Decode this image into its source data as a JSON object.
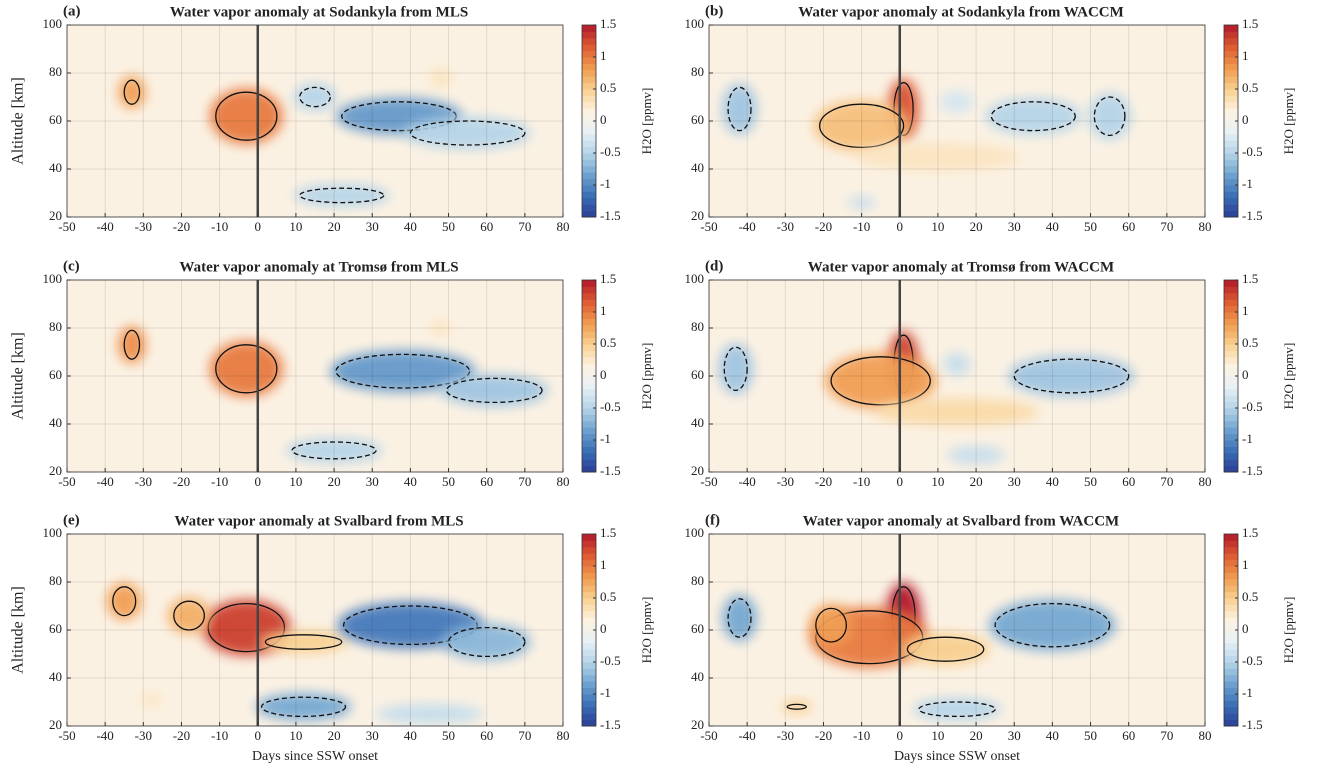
{
  "chart_data": [
    {
      "type": "contour",
      "panel_label": "(a)",
      "title": "Water vapor anomaly at Sodankyla from MLS",
      "ylabel": "Altitude [km]",
      "colorbar_label": "H2O [ppmv]",
      "xlim": [
        -50,
        80
      ],
      "xticks": [
        -50,
        -40,
        -30,
        -20,
        -10,
        0,
        10,
        20,
        30,
        40,
        50,
        60,
        70,
        80
      ],
      "ylim": [
        20,
        100
      ],
      "yticks": [
        20,
        40,
        60,
        80,
        100
      ],
      "clim": [
        -1.5,
        1.5
      ],
      "cticks": [
        -1.5,
        -1,
        -0.5,
        0,
        0.5,
        1,
        1.5
      ],
      "vline": 0,
      "grid": true,
      "colormap": [
        "#2a3d96",
        "#3b6fb6",
        "#6fa3cf",
        "#b5d4e8",
        "#e8f1f5",
        "#fdf2e0",
        "#f8cf8f",
        "#f09a4e",
        "#dd5a32",
        "#b2182b"
      ],
      "features": [
        {
          "day": -33,
          "altitude": 72,
          "day_span": 4,
          "alt_span": 10,
          "value": 0.8
        },
        {
          "day": -3,
          "altitude": 62,
          "day_span": 16,
          "alt_span": 20,
          "value": 1.0
        },
        {
          "day": 48,
          "altitude": 78,
          "day_span": 3,
          "alt_span": 5,
          "value": 0.3
        },
        {
          "day": 37,
          "altitude": 62,
          "day_span": 30,
          "alt_span": 12,
          "value": -0.9
        },
        {
          "day": 55,
          "altitude": 55,
          "day_span": 30,
          "alt_span": 10,
          "value": -0.5
        },
        {
          "day": 15,
          "altitude": 70,
          "day_span": 8,
          "alt_span": 8,
          "value": -0.5
        },
        {
          "day": 22,
          "altitude": 29,
          "day_span": 22,
          "alt_span": 6,
          "value": -0.5
        }
      ]
    },
    {
      "type": "contour",
      "panel_label": "(b)",
      "title": "Water vapor anomaly at Sodankyla from WACCM",
      "colorbar_label": "H2O [ppmv]",
      "xlim": [
        -50,
        80
      ],
      "xticks": [
        -50,
        -40,
        -30,
        -20,
        -10,
        0,
        10,
        20,
        30,
        40,
        50,
        60,
        70,
        80
      ],
      "ylim": [
        20,
        100
      ],
      "yticks": [
        20,
        40,
        60,
        80,
        100
      ],
      "clim": [
        -1.5,
        1.5
      ],
      "cticks": [
        -1.5,
        -1,
        -0.5,
        0,
        0.5,
        1,
        1.5
      ],
      "vline": 0,
      "grid": true,
      "colormap": [
        "#2a3d96",
        "#3b6fb6",
        "#6fa3cf",
        "#b5d4e8",
        "#e8f1f5",
        "#fdf2e0",
        "#f8cf8f",
        "#f09a4e",
        "#dd5a32",
        "#b2182b"
      ],
      "features": [
        {
          "day": 1,
          "altitude": 65,
          "day_span": 5,
          "alt_span": 22,
          "value": 1.2
        },
        {
          "day": -10,
          "altitude": 58,
          "day_span": 22,
          "alt_span": 18,
          "value": 0.6
        },
        {
          "day": 10,
          "altitude": 45,
          "day_span": 40,
          "alt_span": 8,
          "value": 0.3
        },
        {
          "day": -42,
          "altitude": 65,
          "day_span": 6,
          "alt_span": 18,
          "value": -0.6
        },
        {
          "day": 35,
          "altitude": 62,
          "day_span": 22,
          "alt_span": 12,
          "value": -0.5
        },
        {
          "day": 55,
          "altitude": 62,
          "day_span": 8,
          "alt_span": 16,
          "value": -0.5
        },
        {
          "day": 15,
          "altitude": 68,
          "day_span": 6,
          "alt_span": 6,
          "value": -0.3
        },
        {
          "day": -10,
          "altitude": 26,
          "day_span": 4,
          "alt_span": 2,
          "value": -0.4
        }
      ]
    },
    {
      "type": "contour",
      "panel_label": "(c)",
      "title": "Water vapor anomaly at Tromsø from MLS",
      "ylabel": "Altitude [km]",
      "colorbar_label": "H2O [ppmv]",
      "xlim": [
        -50,
        80
      ],
      "xticks": [
        -50,
        -40,
        -30,
        -20,
        -10,
        0,
        10,
        20,
        30,
        40,
        50,
        60,
        70,
        80
      ],
      "ylim": [
        20,
        100
      ],
      "yticks": [
        20,
        40,
        60,
        80,
        100
      ],
      "clim": [
        -1.5,
        1.5
      ],
      "cticks": [
        -1.5,
        -1,
        -0.5,
        0,
        0.5,
        1,
        1.5
      ],
      "vline": 0,
      "grid": true,
      "colormap": [
        "#2a3d96",
        "#3b6fb6",
        "#6fa3cf",
        "#b5d4e8",
        "#e8f1f5",
        "#fdf2e0",
        "#f8cf8f",
        "#f09a4e",
        "#dd5a32",
        "#b2182b"
      ],
      "features": [
        {
          "day": -33,
          "altitude": 73,
          "day_span": 4,
          "alt_span": 12,
          "value": 0.9
        },
        {
          "day": -3,
          "altitude": 63,
          "day_span": 16,
          "alt_span": 20,
          "value": 1.0
        },
        {
          "day": 48,
          "altitude": 80,
          "day_span": 2,
          "alt_span": 3,
          "value": 0.3
        },
        {
          "day": 38,
          "altitude": 62,
          "day_span": 35,
          "alt_span": 14,
          "value": -0.9
        },
        {
          "day": 62,
          "altitude": 54,
          "day_span": 25,
          "alt_span": 10,
          "value": -0.6
        },
        {
          "day": 20,
          "altitude": 29,
          "day_span": 22,
          "alt_span": 7,
          "value": -0.5
        }
      ]
    },
    {
      "type": "contour",
      "panel_label": "(d)",
      "title": "Water vapor anomaly at Tromsø from WACCM",
      "colorbar_label": "H2O [ppmv]",
      "xlim": [
        -50,
        80
      ],
      "xticks": [
        -50,
        -40,
        -30,
        -20,
        -10,
        0,
        10,
        20,
        30,
        40,
        50,
        60,
        70,
        80
      ],
      "ylim": [
        20,
        100
      ],
      "yticks": [
        20,
        40,
        60,
        80,
        100
      ],
      "clim": [
        -1.5,
        1.5
      ],
      "cticks": [
        -1.5,
        -1,
        -0.5,
        0,
        0.5,
        1,
        1.5
      ],
      "vline": 0,
      "grid": true,
      "colormap": [
        "#2a3d96",
        "#3b6fb6",
        "#6fa3cf",
        "#b5d4e8",
        "#e8f1f5",
        "#fdf2e0",
        "#f8cf8f",
        "#f09a4e",
        "#dd5a32",
        "#b2182b"
      ],
      "features": [
        {
          "day": 1,
          "altitude": 65,
          "day_span": 5,
          "alt_span": 24,
          "value": 1.3
        },
        {
          "day": -5,
          "altitude": 58,
          "day_span": 26,
          "alt_span": 20,
          "value": 0.8
        },
        {
          "day": 15,
          "altitude": 45,
          "day_span": 40,
          "alt_span": 8,
          "value": 0.4
        },
        {
          "day": -43,
          "altitude": 63,
          "day_span": 6,
          "alt_span": 18,
          "value": -0.6
        },
        {
          "day": 45,
          "altitude": 60,
          "day_span": 30,
          "alt_span": 14,
          "value": -0.6
        },
        {
          "day": 15,
          "altitude": 65,
          "day_span": 4,
          "alt_span": 6,
          "value": -0.4
        },
        {
          "day": 20,
          "altitude": 27,
          "day_span": 12,
          "alt_span": 4,
          "value": -0.4
        }
      ]
    },
    {
      "type": "contour",
      "panel_label": "(e)",
      "title": "Water vapor anomaly at Svalbard from MLS",
      "ylabel": "Altitude [km]",
      "xlabel": "Days since SSW onset",
      "colorbar_label": "H2O [ppmv]",
      "xlim": [
        -50,
        80
      ],
      "xticks": [
        -50,
        -40,
        -30,
        -20,
        -10,
        0,
        10,
        20,
        30,
        40,
        50,
        60,
        70,
        80
      ],
      "ylim": [
        20,
        100
      ],
      "yticks": [
        20,
        40,
        60,
        80,
        100
      ],
      "clim": [
        -1.5,
        1.5
      ],
      "cticks": [
        -1.5,
        -1,
        -0.5,
        0,
        0.5,
        1,
        1.5
      ],
      "vline": 0,
      "grid": true,
      "colormap": [
        "#2a3d96",
        "#3b6fb6",
        "#6fa3cf",
        "#b5d4e8",
        "#e8f1f5",
        "#fdf2e0",
        "#f8cf8f",
        "#f09a4e",
        "#dd5a32",
        "#b2182b"
      ],
      "features": [
        {
          "day": -35,
          "altitude": 72,
          "day_span": 6,
          "alt_span": 12,
          "value": 0.8
        },
        {
          "day": -3,
          "altitude": 61,
          "day_span": 20,
          "alt_span": 20,
          "value": 1.3
        },
        {
          "day": -18,
          "altitude": 66,
          "day_span": 8,
          "alt_span": 12,
          "value": 0.7
        },
        {
          "day": 12,
          "altitude": 55,
          "day_span": 20,
          "alt_span": 6,
          "value": 0.5
        },
        {
          "day": 40,
          "altitude": 62,
          "day_span": 35,
          "alt_span": 16,
          "value": -1.1
        },
        {
          "day": 60,
          "altitude": 55,
          "day_span": 20,
          "alt_span": 12,
          "value": -0.7
        },
        {
          "day": 12,
          "altitude": 28,
          "day_span": 22,
          "alt_span": 8,
          "value": -0.8
        },
        {
          "day": 45,
          "altitude": 25,
          "day_span": 25,
          "alt_span": 5,
          "value": -0.4
        },
        {
          "day": -28,
          "altitude": 31,
          "day_span": 3,
          "alt_span": 2,
          "value": 0.3
        }
      ]
    },
    {
      "type": "contour",
      "panel_label": "(f)",
      "title": "Water vapor anomaly at Svalbard from WACCM",
      "xlabel": "Days since SSW onset",
      "colorbar_label": "H2O [ppmv]",
      "xlim": [
        -50,
        80
      ],
      "xticks": [
        -50,
        -40,
        -30,
        -20,
        -10,
        0,
        10,
        20,
        30,
        40,
        50,
        60,
        70,
        80
      ],
      "ylim": [
        20,
        100
      ],
      "yticks": [
        20,
        40,
        60,
        80,
        100
      ],
      "clim": [
        -1.5,
        1.5
      ],
      "cticks": [
        -1.5,
        -1,
        -0.5,
        0,
        0.5,
        1,
        1.5
      ],
      "vline": 0,
      "grid": true,
      "colormap": [
        "#2a3d96",
        "#3b6fb6",
        "#6fa3cf",
        "#b5d4e8",
        "#e8f1f5",
        "#fdf2e0",
        "#f8cf8f",
        "#f09a4e",
        "#dd5a32",
        "#b2182b"
      ],
      "features": [
        {
          "day": 1,
          "altitude": 66,
          "day_span": 6,
          "alt_span": 24,
          "value": 1.5
        },
        {
          "day": -8,
          "altitude": 57,
          "day_span": 28,
          "alt_span": 22,
          "value": 1.0
        },
        {
          "day": -18,
          "altitude": 62,
          "day_span": 8,
          "alt_span": 14,
          "value": 0.8
        },
        {
          "day": 12,
          "altitude": 52,
          "day_span": 20,
          "alt_span": 10,
          "value": 0.5
        },
        {
          "day": -42,
          "altitude": 65,
          "day_span": 6,
          "alt_span": 16,
          "value": -0.8
        },
        {
          "day": 40,
          "altitude": 62,
          "day_span": 30,
          "alt_span": 18,
          "value": -0.8
        },
        {
          "day": 15,
          "altitude": 27,
          "day_span": 20,
          "alt_span": 6,
          "value": -0.5
        },
        {
          "day": -27,
          "altitude": 28,
          "day_span": 5,
          "alt_span": 2,
          "value": 0.5
        }
      ]
    }
  ]
}
